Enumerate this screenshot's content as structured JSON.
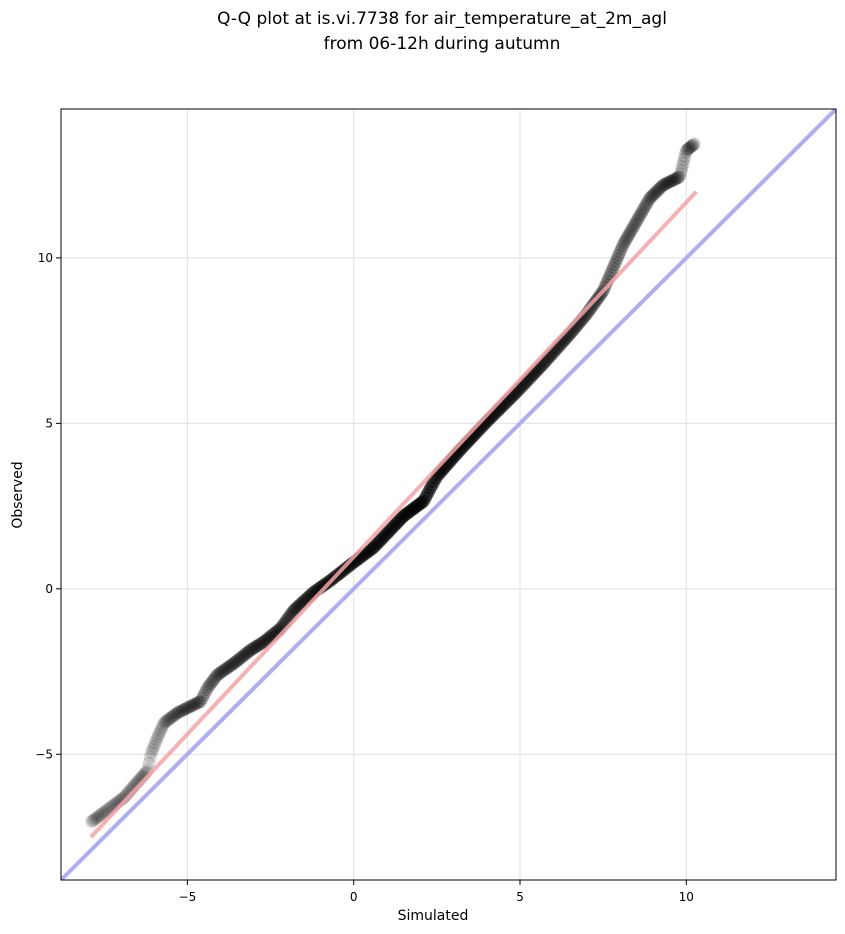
{
  "chart_data": {
    "type": "scatter",
    "title_lines": [
      "Q-Q plot at is.vi.7738 for air_temperature_at_2m_agl",
      "from 06-12h during autumn"
    ],
    "xlabel": "Simulated",
    "ylabel": "Observed",
    "xlim": [
      -8.8,
      14.5
    ],
    "ylim": [
      -8.8,
      14.5
    ],
    "xticks": [
      -5,
      0,
      5,
      10
    ],
    "yticks": [
      -5,
      0,
      5,
      10
    ],
    "xtick_labels": [
      "−5",
      "0",
      "5",
      "10"
    ],
    "ytick_labels": [
      "−5",
      "0",
      "5",
      "10"
    ],
    "grid": true,
    "reference_line": {
      "slope": 1,
      "intercept": 0,
      "color": "#aaaaf0"
    },
    "fit_line": {
      "x": [
        -7.9,
        10.3
      ],
      "y": [
        -7.5,
        12.0
      ],
      "color": "#f4a5a5"
    },
    "point_color": "#000000",
    "anchors": [
      [
        -7.9,
        -7.05
      ],
      [
        -7.3,
        -6.6
      ],
      [
        -6.9,
        -6.3
      ],
      [
        -6.6,
        -5.95
      ],
      [
        -6.2,
        -5.5
      ],
      [
        -6.1,
        -5.0
      ],
      [
        -5.9,
        -4.5
      ],
      [
        -5.7,
        -4.05
      ],
      [
        -5.3,
        -3.75
      ],
      [
        -5.0,
        -3.6
      ],
      [
        -4.6,
        -3.4
      ],
      [
        -4.4,
        -3.0
      ],
      [
        -4.1,
        -2.6
      ],
      [
        -3.6,
        -2.25
      ],
      [
        -3.1,
        -1.85
      ],
      [
        -2.7,
        -1.6
      ],
      [
        -2.2,
        -1.2
      ],
      [
        -1.8,
        -0.65
      ],
      [
        -1.2,
        -0.1
      ],
      [
        -0.7,
        0.25
      ],
      [
        0.0,
        0.8
      ],
      [
        0.6,
        1.25
      ],
      [
        1.5,
        2.2
      ],
      [
        2.1,
        2.65
      ],
      [
        2.5,
        3.4
      ],
      [
        3.2,
        4.2
      ],
      [
        4.0,
        5.05
      ],
      [
        4.9,
        5.95
      ],
      [
        5.7,
        6.8
      ],
      [
        6.5,
        7.7
      ],
      [
        7.0,
        8.3
      ],
      [
        7.5,
        9.0
      ],
      [
        7.8,
        9.7
      ],
      [
        8.1,
        10.4
      ],
      [
        8.5,
        11.1
      ],
      [
        8.9,
        11.8
      ],
      [
        9.3,
        12.2
      ],
      [
        9.8,
        12.45
      ],
      [
        10.0,
        13.25
      ],
      [
        10.25,
        13.45
      ]
    ]
  }
}
